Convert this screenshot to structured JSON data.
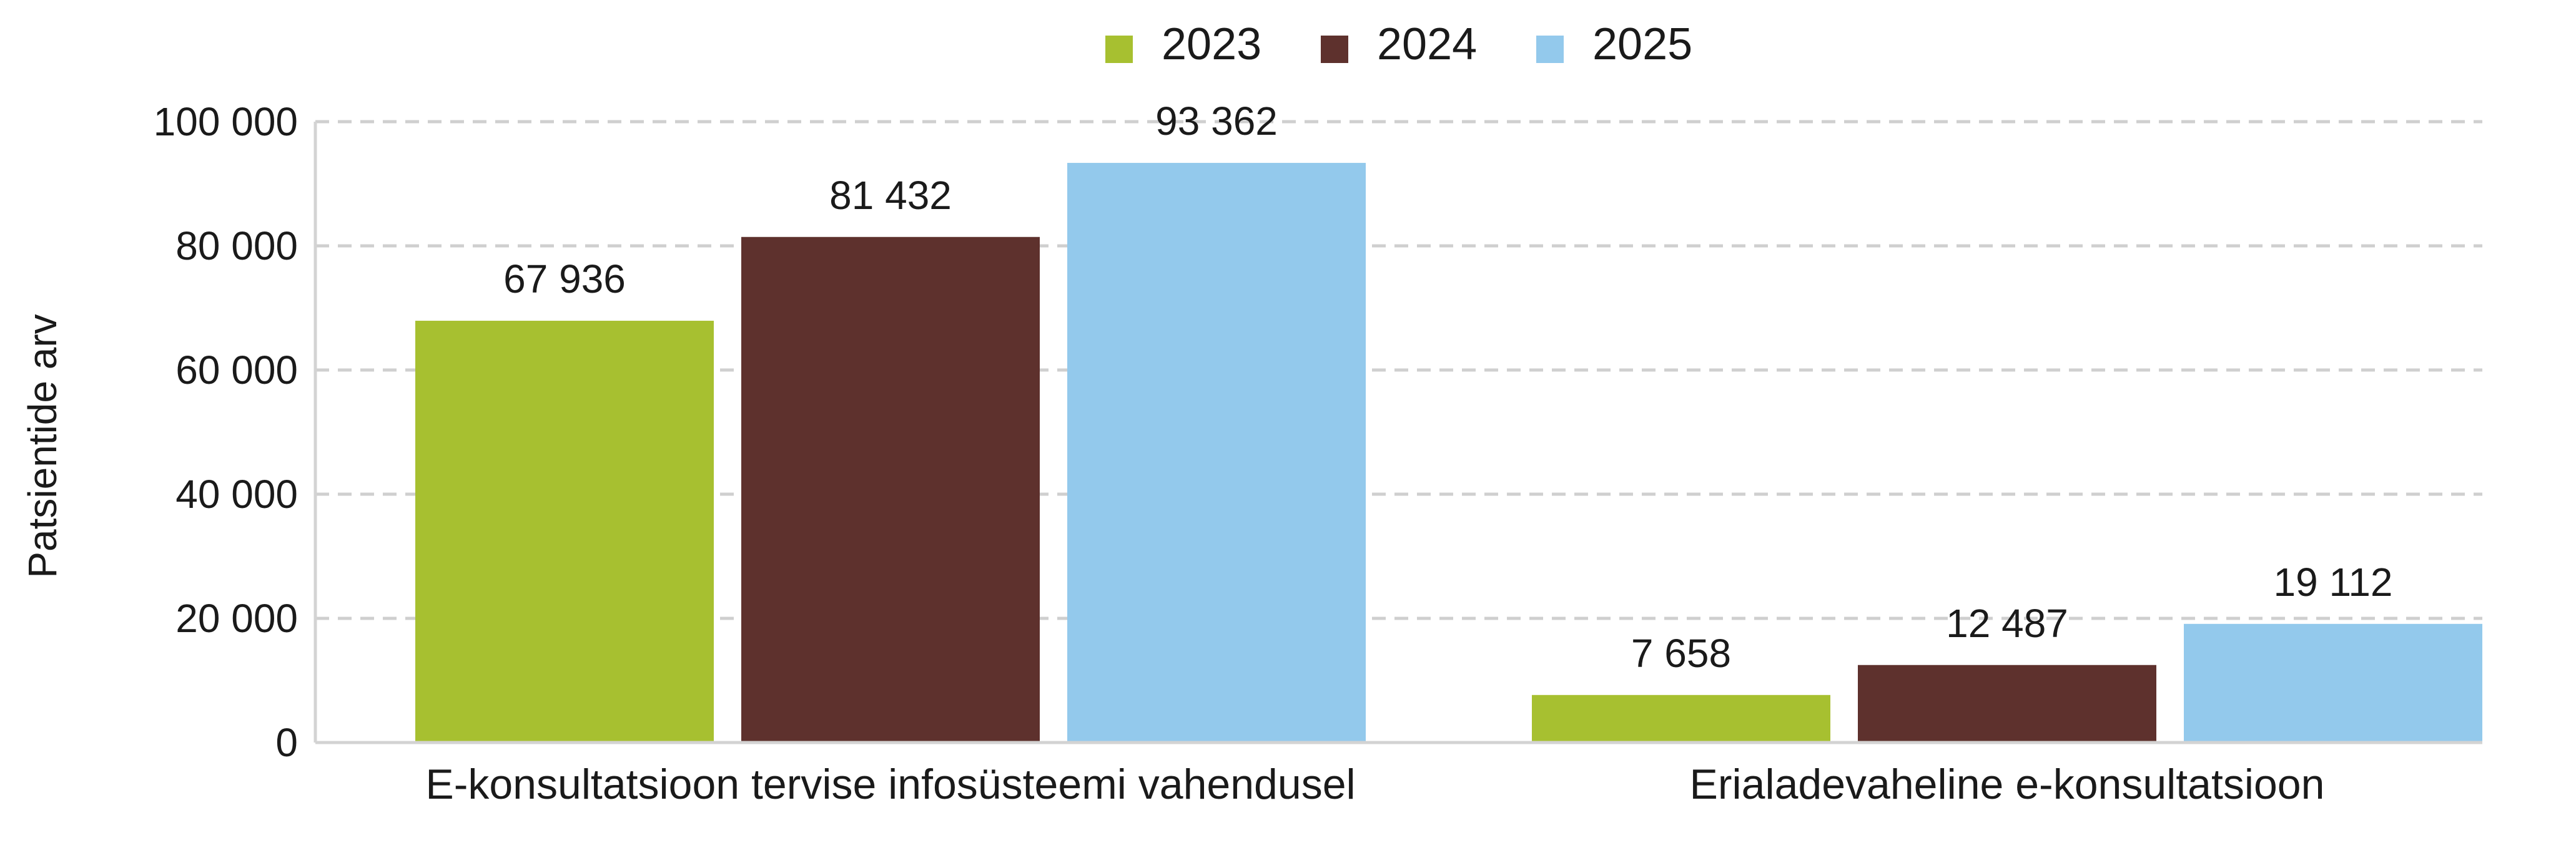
{
  "chart_data": {
    "type": "bar",
    "categories": [
      "E-konsultatsioon tervise infosüsteemi vahendusel",
      "Erialadevaheline e-konsultatsioon"
    ],
    "series": [
      {
        "name": "2023",
        "color": "#a7c030",
        "values": [
          67936,
          7658
        ],
        "labels": [
          "67 936",
          "7 658"
        ]
      },
      {
        "name": "2024",
        "color": "#5e312d",
        "values": [
          81432,
          12487
        ],
        "labels": [
          "81 432",
          "12 487"
        ]
      },
      {
        "name": "2025",
        "color": "#93c9ec",
        "values": [
          93362,
          19112
        ],
        "labels": [
          "93 362",
          "19 112"
        ]
      }
    ],
    "ylabel": "Patsientide arv",
    "ylim": [
      0,
      100000
    ],
    "yticks": [
      0,
      20000,
      40000,
      60000,
      80000,
      100000
    ],
    "ytick_labels": [
      "0",
      "20 000",
      "40 000",
      "60 000",
      "80 000",
      "100 000"
    ],
    "grid": true,
    "legend_position": "top-center"
  }
}
